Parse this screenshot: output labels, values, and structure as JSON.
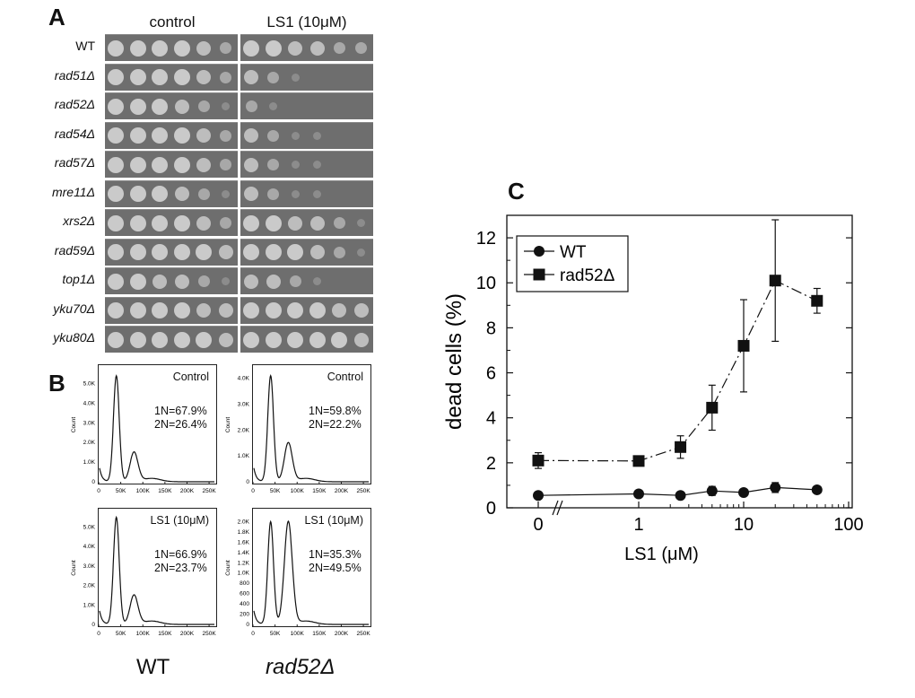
{
  "panel_a": {
    "letter": "A",
    "col_control": "control",
    "col_ls1": "LS1 (10μM)",
    "strains": [
      {
        "name": "WT",
        "italic": false,
        "control": [
          4,
          4,
          4,
          4,
          3,
          2
        ],
        "ls1": [
          4,
          4,
          3,
          3,
          2,
          2
        ]
      },
      {
        "name": "rad51Δ",
        "italic": true,
        "control": [
          4,
          4,
          4,
          4,
          3,
          2
        ],
        "ls1": [
          3,
          2,
          1,
          0,
          0,
          0
        ]
      },
      {
        "name": "rad52Δ",
        "italic": true,
        "control": [
          4,
          4,
          4,
          3,
          2,
          1
        ],
        "ls1": [
          2,
          1,
          0,
          0,
          0,
          0
        ]
      },
      {
        "name": "rad54Δ",
        "italic": true,
        "control": [
          4,
          4,
          4,
          4,
          3,
          2
        ],
        "ls1": [
          3,
          2,
          1,
          1,
          0,
          0
        ]
      },
      {
        "name": "rad57Δ",
        "italic": true,
        "control": [
          4,
          4,
          4,
          4,
          3,
          2
        ],
        "ls1": [
          3,
          2,
          1,
          1,
          0,
          0
        ]
      },
      {
        "name": "mre11Δ",
        "italic": true,
        "control": [
          4,
          4,
          4,
          3,
          2,
          1
        ],
        "ls1": [
          3,
          2,
          1,
          1,
          0,
          0
        ]
      },
      {
        "name": "xrs2Δ",
        "italic": true,
        "control": [
          4,
          4,
          4,
          4,
          3,
          2
        ],
        "ls1": [
          4,
          4,
          3,
          3,
          2,
          1
        ]
      },
      {
        "name": "rad59Δ",
        "italic": true,
        "control": [
          4,
          4,
          4,
          4,
          4,
          3
        ],
        "ls1": [
          4,
          4,
          4,
          3,
          2,
          1
        ]
      },
      {
        "name": "top1Δ",
        "italic": true,
        "control": [
          4,
          4,
          3,
          3,
          2,
          1
        ],
        "ls1": [
          3,
          3,
          2,
          1,
          0,
          0
        ]
      },
      {
        "name": "yku70Δ",
        "italic": true,
        "control": [
          4,
          4,
          4,
          4,
          3,
          3
        ],
        "ls1": [
          4,
          4,
          4,
          4,
          3,
          3
        ]
      },
      {
        "name": "yku80Δ",
        "italic": true,
        "control": [
          4,
          4,
          4,
          4,
          4,
          3
        ],
        "ls1": [
          4,
          4,
          4,
          4,
          4,
          3
        ]
      }
    ]
  },
  "panel_b": {
    "letter": "B",
    "x_ticks": [
      "0",
      "50K",
      "100K",
      "150K",
      "200K",
      "250K"
    ],
    "y_axis_label": "Count",
    "histograms": [
      {
        "id": "wt-control",
        "title": "Control",
        "stat1": "1N=67.9%",
        "stat2": "2N=26.4%",
        "y_ticks": [
          "0",
          "1.0K",
          "2.0K",
          "3.0K",
          "4.0K",
          "5.0K"
        ],
        "ymax": 5800,
        "g1": 5400,
        "g2": 1500
      },
      {
        "id": "rad52-control",
        "title": "Control",
        "stat1": "1N=59.8%",
        "stat2": "2N=22.2%",
        "y_ticks": [
          "0",
          "1.0K",
          "2.0K",
          "3.0K",
          "4.0K"
        ],
        "ymax": 4400,
        "g1": 4100,
        "g2": 1500
      },
      {
        "id": "wt-ls1",
        "title": "LS1 (10μM)",
        "stat1": "1N=66.9%",
        "stat2": "2N=23.7%",
        "y_ticks": [
          "0",
          "1.0K",
          "2.0K",
          "3.0K",
          "4.0K",
          "5.0K"
        ],
        "ymax": 5800,
        "g1": 5500,
        "g2": 1500
      },
      {
        "id": "rad52-ls1",
        "title": "LS1 (10μM)",
        "stat1": "1N=35.3%",
        "stat2": "2N=49.5%",
        "y_ticks": [
          "0",
          "200",
          "400",
          "600",
          "800",
          "1.0K",
          "1.2K",
          "1.4K",
          "1.6K",
          "1.8K",
          "2.0K"
        ],
        "ymax": 2200,
        "g1": 2000,
        "g2": 2000
      }
    ],
    "label_wt": "WT",
    "label_rad52": "rad52Δ"
  },
  "chart_data": {
    "letter": "C",
    "type": "scatter",
    "xlabel": "LS1 (μM)",
    "ylabel": "dead cells (%)",
    "xscale": "log",
    "x_tick_labels": [
      "0",
      "1",
      "10",
      "100"
    ],
    "ylim": [
      0,
      13
    ],
    "y_ticks": [
      "0",
      "2",
      "4",
      "6",
      "8",
      "10",
      "12"
    ],
    "legend_position": "top-left",
    "series": [
      {
        "name": "WT",
        "marker": "circle",
        "line": "solid",
        "x": [
          0,
          1,
          2.5,
          5,
          10,
          20,
          50
        ],
        "y": [
          0.55,
          0.62,
          0.55,
          0.75,
          0.68,
          0.9,
          0.8
        ],
        "err": [
          0.1,
          0.1,
          0.1,
          0.2,
          0.12,
          0.22,
          0.12
        ]
      },
      {
        "name": "rad52Δ",
        "marker": "square",
        "line": "dashdot",
        "x": [
          0,
          1,
          2.5,
          5,
          10,
          20,
          50
        ],
        "y": [
          2.1,
          2.08,
          2.7,
          4.45,
          7.2,
          10.1,
          9.2
        ],
        "err": [
          0.35,
          0.1,
          0.5,
          1.0,
          2.05,
          2.7,
          0.55
        ]
      }
    ]
  }
}
